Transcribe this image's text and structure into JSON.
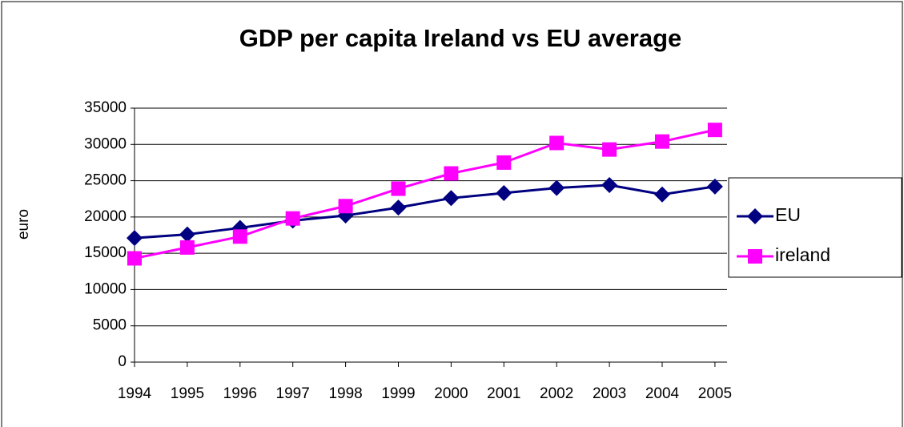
{
  "chart_data": {
    "type": "line",
    "title": "GDP per capita Ireland vs EU average",
    "y_label": "euro",
    "categories": [
      "1994",
      "1995",
      "1996",
      "1997",
      "1998",
      "1999",
      "2000",
      "2001",
      "2002",
      "2003",
      "2004",
      "2005"
    ],
    "series": [
      {
        "name": "EU",
        "color": "#000080",
        "marker": "diamond",
        "values": [
          17100,
          17600,
          18500,
          19500,
          20200,
          21300,
          22600,
          23300,
          24000,
          24400,
          23100,
          24200
        ]
      },
      {
        "name": "ireland",
        "color": "#ff00ff",
        "marker": "square",
        "values": [
          14300,
          15800,
          17300,
          19800,
          21500,
          23900,
          26000,
          27500,
          30200,
          29300,
          30400,
          32000
        ]
      }
    ],
    "ylim": [
      0,
      35000
    ],
    "yticks": [
      0,
      5000,
      10000,
      15000,
      20000,
      25000,
      30000,
      35000
    ],
    "grid": true,
    "legend": "right"
  }
}
